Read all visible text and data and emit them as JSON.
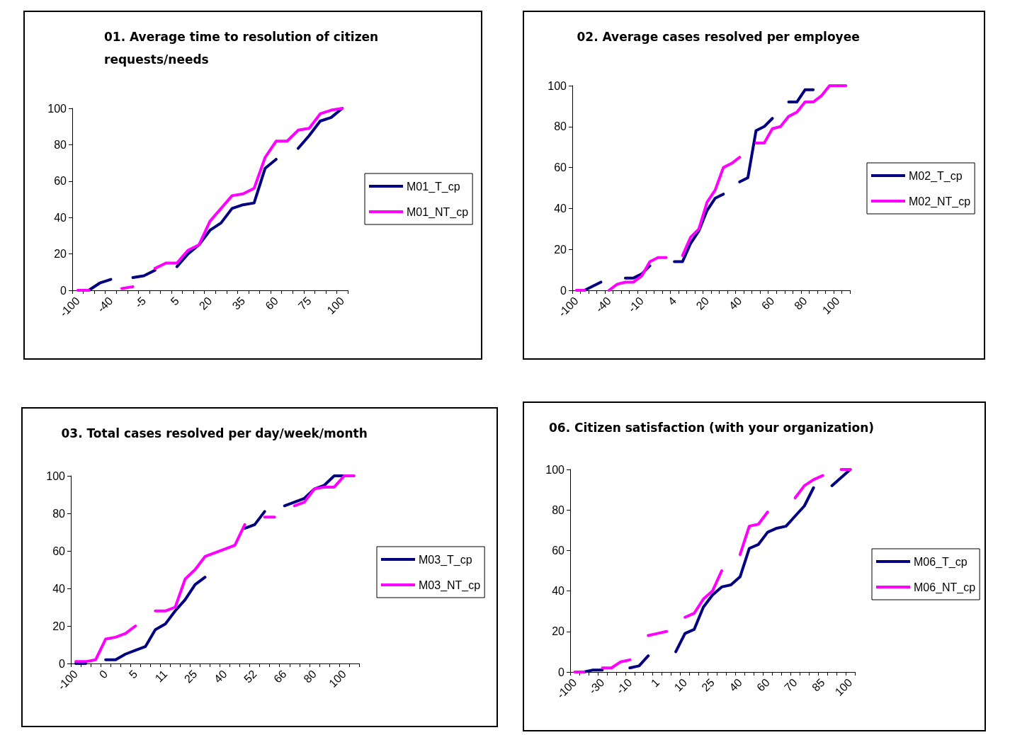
{
  "chart_data": [
    {
      "type": "line",
      "title": "01. Average time to resolution of citizen requests/needs",
      "categories": [
        "-100",
        null,
        null,
        "-40",
        null,
        null,
        "-5",
        null,
        null,
        "5",
        null,
        null,
        "20",
        null,
        null,
        "35",
        null,
        null,
        "60",
        null,
        null,
        "75",
        null,
        null,
        "100"
      ],
      "series": [
        {
          "name": "M01_T_cp",
          "color": "#000080",
          "values": [
            null,
            0,
            4,
            6,
            null,
            7,
            8,
            11,
            null,
            13,
            20,
            25,
            33,
            37,
            45,
            47,
            48,
            67,
            72,
            null,
            78,
            85,
            93,
            95,
            100
          ]
        },
        {
          "name": "M01_NT_cp",
          "color": "#ff00ff",
          "values": [
            0,
            0,
            null,
            null,
            1,
            2,
            null,
            12,
            15,
            15,
            22,
            25,
            38,
            45,
            52,
            53,
            56,
            73,
            82,
            82,
            88,
            89,
            97,
            99,
            100
          ]
        }
      ],
      "ylim": [
        0,
        100
      ],
      "yticks": [
        0,
        20,
        40,
        60,
        80,
        100
      ],
      "grid": false,
      "legend": "right",
      "marker": "none",
      "line_style": "solid"
    },
    {
      "type": "line",
      "title": "02. Average cases resolved per employee",
      "categories": [
        "-100",
        null,
        null,
        null,
        "-40",
        null,
        null,
        null,
        "-10",
        null,
        null,
        null,
        "4",
        null,
        null,
        null,
        "20",
        null,
        null,
        null,
        "40",
        null,
        null,
        null,
        "60",
        null,
        null,
        null,
        "80",
        null,
        null,
        null,
        "100",
        null
      ],
      "series": [
        {
          "name": "M02_T_cp",
          "color": "#000080",
          "values": [
            null,
            0,
            2,
            4,
            null,
            null,
            6,
            6,
            8,
            12,
            null,
            null,
            14,
            14,
            23,
            29,
            39,
            45,
            47,
            null,
            53,
            55,
            78,
            80,
            84,
            null,
            92,
            92,
            98,
            98,
            null,
            null,
            null,
            null
          ]
        },
        {
          "name": "M02_NT_cp",
          "color": "#ff00ff",
          "values": [
            0,
            0,
            null,
            null,
            0,
            3,
            4,
            4,
            7,
            14,
            16,
            16,
            null,
            17,
            26,
            30,
            43,
            49,
            60,
            62,
            65,
            null,
            72,
            72,
            79,
            80,
            85,
            87,
            92,
            92,
            95,
            100,
            100,
            100
          ]
        }
      ],
      "ylim": [
        0,
        100
      ],
      "yticks": [
        0,
        20,
        40,
        60,
        80,
        100
      ],
      "grid": false,
      "legend": "right",
      "marker": "none",
      "line_style": "solid"
    },
    {
      "type": "line",
      "title": "03. Total cases resolved per day/week/month",
      "categories": [
        "-100",
        null,
        null,
        "0",
        null,
        null,
        "5",
        null,
        null,
        "11",
        null,
        null,
        "25",
        null,
        null,
        "40",
        null,
        null,
        "52",
        null,
        null,
        "66",
        null,
        null,
        "80",
        null,
        null,
        "100",
        null
      ],
      "series": [
        {
          "name": "M03_T_cp",
          "color": "#000080",
          "values": [
            0,
            0,
            null,
            2,
            2,
            5,
            7,
            9,
            18,
            21,
            28,
            34,
            42,
            46,
            null,
            null,
            null,
            72,
            74,
            81,
            null,
            84,
            86,
            88,
            93,
            95,
            100,
            100,
            null
          ]
        },
        {
          "name": "M03_NT_cp",
          "color": "#ff00ff",
          "values": [
            1,
            1,
            2,
            13,
            14,
            16,
            20,
            null,
            28,
            28,
            30,
            45,
            50,
            57,
            59,
            61,
            63,
            74,
            null,
            78,
            78,
            null,
            84,
            86,
            93,
            94,
            94,
            100,
            100
          ]
        }
      ],
      "ylim": [
        0,
        100
      ],
      "yticks": [
        0,
        20,
        40,
        60,
        80,
        100
      ],
      "grid": false,
      "legend": "right",
      "marker": "none",
      "line_style": "solid"
    },
    {
      "type": "line",
      "title": "06. Citizen satisfaction (with your organization)",
      "categories": [
        "-100",
        null,
        null,
        "-30",
        null,
        null,
        "-10",
        null,
        null,
        "1",
        null,
        null,
        "10",
        null,
        null,
        "25",
        null,
        null,
        "40",
        null,
        null,
        "60",
        null,
        null,
        "70",
        null,
        null,
        "85",
        null,
        null,
        "100"
      ],
      "series": [
        {
          "name": "M06_T_cp",
          "color": "#000080",
          "values": [
            null,
            0,
            1,
            1,
            null,
            null,
            2,
            3,
            8,
            null,
            null,
            10,
            19,
            21,
            32,
            38,
            42,
            43,
            47,
            61,
            63,
            69,
            71,
            72,
            77,
            82,
            91,
            null,
            92,
            96,
            100
          ]
        },
        {
          "name": "M06_NT_cp",
          "color": "#ff00ff",
          "values": [
            0,
            0,
            null,
            2,
            2,
            5,
            6,
            null,
            18,
            19,
            20,
            null,
            27,
            29,
            36,
            40,
            50,
            null,
            58,
            72,
            73,
            79,
            null,
            null,
            86,
            92,
            95,
            97,
            null,
            100,
            100
          ]
        }
      ],
      "ylim": [
        0,
        100
      ],
      "yticks": [
        0,
        20,
        40,
        60,
        80,
        100
      ],
      "grid": false,
      "legend": "right",
      "marker": "none",
      "line_style": "solid"
    }
  ]
}
